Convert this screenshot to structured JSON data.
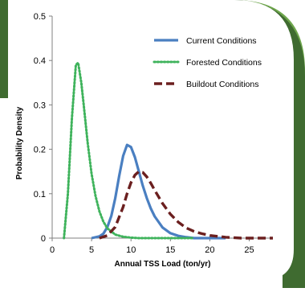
{
  "frame": {
    "colors": {
      "green_dark": "#3f6b30",
      "green_light": "#6ea64c",
      "panel": "#ffffff"
    }
  },
  "chart_data": {
    "type": "line",
    "xlabel": "Annual TSS Load (ton/yr)",
    "ylabel": "Probability Density",
    "xlim": [
      0,
      28
    ],
    "ylim": [
      0,
      0.5
    ],
    "x_ticks": [
      "0",
      "5",
      "10",
      "15",
      "20",
      "25"
    ],
    "y_ticks": [
      "0",
      "0.1",
      "0.2",
      "0.3",
      "0.4",
      "0.5"
    ],
    "grid": false,
    "legend_position": "top-right",
    "series": [
      {
        "name": "Current Conditions",
        "color": "#4a7fc1",
        "style": "solid",
        "points": [
          [
            5.0,
            0.0
          ],
          [
            6.0,
            0.004
          ],
          [
            6.5,
            0.01
          ],
          [
            7.0,
            0.025
          ],
          [
            7.5,
            0.05
          ],
          [
            8.0,
            0.09
          ],
          [
            8.5,
            0.14
          ],
          [
            9.0,
            0.185
          ],
          [
            9.5,
            0.21
          ],
          [
            10.0,
            0.205
          ],
          [
            10.5,
            0.182
          ],
          [
            11.0,
            0.15
          ],
          [
            11.5,
            0.118
          ],
          [
            12.0,
            0.09
          ],
          [
            12.5,
            0.067
          ],
          [
            13.0,
            0.049
          ],
          [
            14.0,
            0.024
          ],
          [
            15.0,
            0.011
          ],
          [
            16.0,
            0.005
          ],
          [
            17.0,
            0.002
          ],
          [
            18.0,
            0.0
          ],
          [
            20.0,
            0.0
          ],
          [
            22.0,
            0.0
          ]
        ]
      },
      {
        "name": "Forested Conditions",
        "color": "#3fb35c",
        "style": "dotted",
        "points": [
          [
            1.5,
            0.0
          ],
          [
            2.0,
            0.1
          ],
          [
            2.5,
            0.27
          ],
          [
            3.0,
            0.39
          ],
          [
            3.3,
            0.395
          ],
          [
            3.7,
            0.35
          ],
          [
            4.0,
            0.3
          ],
          [
            4.5,
            0.215
          ],
          [
            5.0,
            0.145
          ],
          [
            5.5,
            0.095
          ],
          [
            6.0,
            0.06
          ],
          [
            6.5,
            0.037
          ],
          [
            7.0,
            0.022
          ],
          [
            8.0,
            0.008
          ],
          [
            9.0,
            0.003
          ],
          [
            10.0,
            0.001
          ],
          [
            11.0,
            0.0
          ],
          [
            14.0,
            0.0
          ],
          [
            18.0,
            0.0
          ]
        ]
      },
      {
        "name": "Buildout Conditions",
        "color": "#6b1f1f",
        "style": "dashed",
        "points": [
          [
            6.0,
            0.0
          ],
          [
            7.0,
            0.006
          ],
          [
            8.0,
            0.025
          ],
          [
            9.0,
            0.07
          ],
          [
            9.5,
            0.1
          ],
          [
            10.0,
            0.125
          ],
          [
            10.5,
            0.142
          ],
          [
            11.0,
            0.15
          ],
          [
            11.5,
            0.148
          ],
          [
            12.0,
            0.138
          ],
          [
            12.5,
            0.124
          ],
          [
            13.0,
            0.108
          ],
          [
            14.0,
            0.078
          ],
          [
            15.0,
            0.054
          ],
          [
            16.0,
            0.036
          ],
          [
            17.0,
            0.023
          ],
          [
            18.0,
            0.015
          ],
          [
            19.0,
            0.01
          ],
          [
            20.0,
            0.006
          ],
          [
            21.0,
            0.004
          ],
          [
            22.0,
            0.002
          ],
          [
            24.0,
            0.0
          ],
          [
            28.0,
            0.0
          ]
        ]
      }
    ]
  }
}
